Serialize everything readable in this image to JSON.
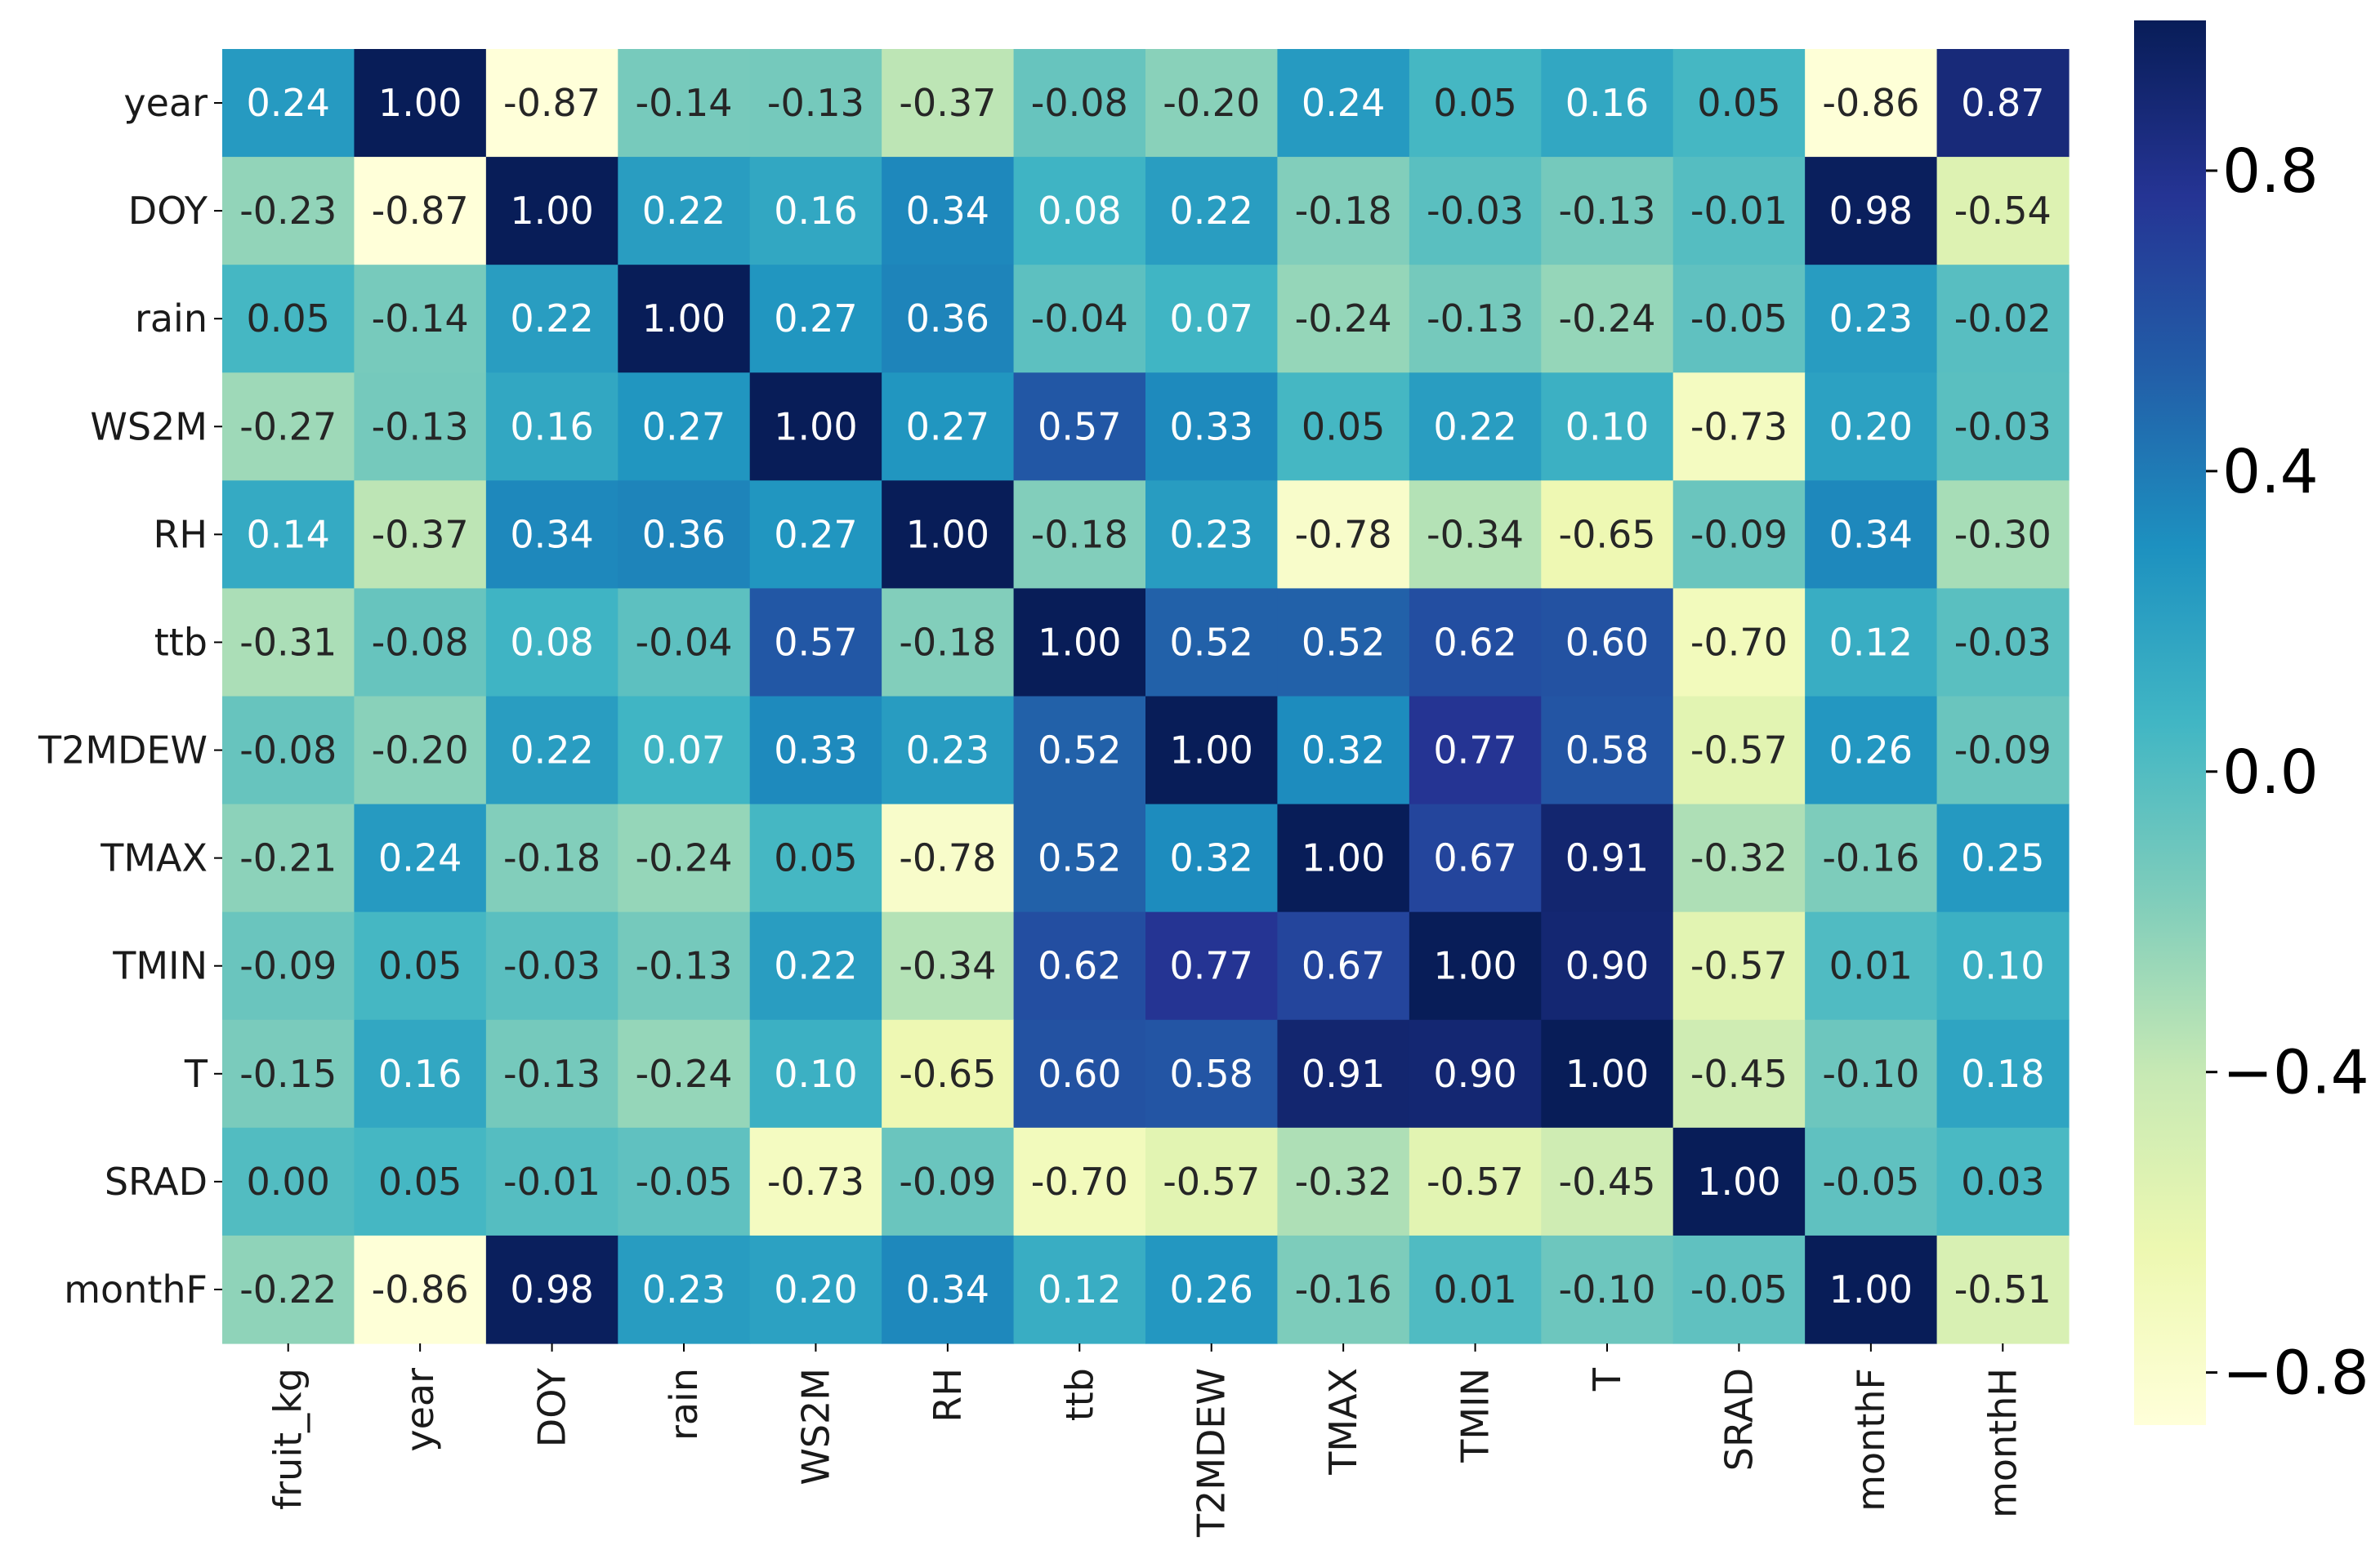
{
  "chart_data": {
    "type": "heatmap",
    "title": "",
    "xlabel": "",
    "ylabel": "",
    "colormap": "YlGnBu",
    "colorbar_range": [
      -0.87,
      1.0
    ],
    "colorbar_ticks": [
      {
        "value": 0.8,
        "label": "0.8"
      },
      {
        "value": 0.4,
        "label": "0.4"
      },
      {
        "value": 0.0,
        "label": "0.0"
      },
      {
        "value": -0.4,
        "label": "−0.4"
      },
      {
        "value": -0.8,
        "label": "−0.8"
      }
    ],
    "row_labels": [
      "year",
      "DOY",
      "rain",
      "WS2M",
      "RH",
      "ttb",
      "T2MDEW",
      "TMAX",
      "TMIN",
      "T",
      "SRAD",
      "monthF"
    ],
    "col_labels": [
      "fruit_kg",
      "year",
      "DOY",
      "rain",
      "WS2M",
      "RH",
      "ttb",
      "T2MDEW",
      "TMAX",
      "TMIN",
      "T",
      "SRAD",
      "monthF",
      "monthH"
    ],
    "values": [
      [
        0.24,
        1.0,
        -0.87,
        -0.14,
        -0.13,
        -0.37,
        -0.08,
        -0.2,
        0.24,
        0.05,
        0.16,
        0.05,
        -0.86,
        0.87
      ],
      [
        -0.23,
        -0.87,
        1.0,
        0.22,
        0.16,
        0.34,
        0.08,
        0.22,
        -0.18,
        -0.03,
        -0.13,
        -0.01,
        0.98,
        -0.54
      ],
      [
        0.05,
        -0.14,
        0.22,
        1.0,
        0.27,
        0.36,
        -0.04,
        0.07,
        -0.24,
        -0.13,
        -0.24,
        -0.05,
        0.23,
        -0.02
      ],
      [
        -0.27,
        -0.13,
        0.16,
        0.27,
        1.0,
        0.27,
        0.57,
        0.33,
        0.05,
        0.22,
        0.1,
        -0.73,
        0.2,
        -0.03
      ],
      [
        0.14,
        -0.37,
        0.34,
        0.36,
        0.27,
        1.0,
        -0.18,
        0.23,
        -0.78,
        -0.34,
        -0.65,
        -0.09,
        0.34,
        -0.3
      ],
      [
        -0.31,
        -0.08,
        0.08,
        -0.04,
        0.57,
        -0.18,
        1.0,
        0.52,
        0.52,
        0.62,
        0.6,
        -0.7,
        0.12,
        -0.03
      ],
      [
        -0.08,
        -0.2,
        0.22,
        0.07,
        0.33,
        0.23,
        0.52,
        1.0,
        0.32,
        0.77,
        0.58,
        -0.57,
        0.26,
        -0.09
      ],
      [
        -0.21,
        0.24,
        -0.18,
        -0.24,
        0.05,
        -0.78,
        0.52,
        0.32,
        1.0,
        0.67,
        0.91,
        -0.32,
        -0.16,
        0.25
      ],
      [
        -0.09,
        0.05,
        -0.03,
        -0.13,
        0.22,
        -0.34,
        0.62,
        0.77,
        0.67,
        1.0,
        0.9,
        -0.57,
        0.01,
        0.1
      ],
      [
        -0.15,
        0.16,
        -0.13,
        -0.24,
        0.1,
        -0.65,
        0.6,
        0.58,
        0.91,
        0.9,
        1.0,
        -0.45,
        -0.1,
        0.18
      ],
      [
        -0.0,
        0.05,
        -0.01,
        -0.05,
        -0.73,
        -0.09,
        -0.7,
        -0.57,
        -0.32,
        -0.57,
        -0.45,
        1.0,
        -0.05,
        0.03
      ],
      [
        -0.22,
        -0.86,
        0.98,
        0.23,
        0.2,
        0.34,
        0.12,
        0.26,
        -0.16,
        0.01,
        -0.1,
        -0.05,
        1.0,
        -0.51
      ]
    ]
  }
}
